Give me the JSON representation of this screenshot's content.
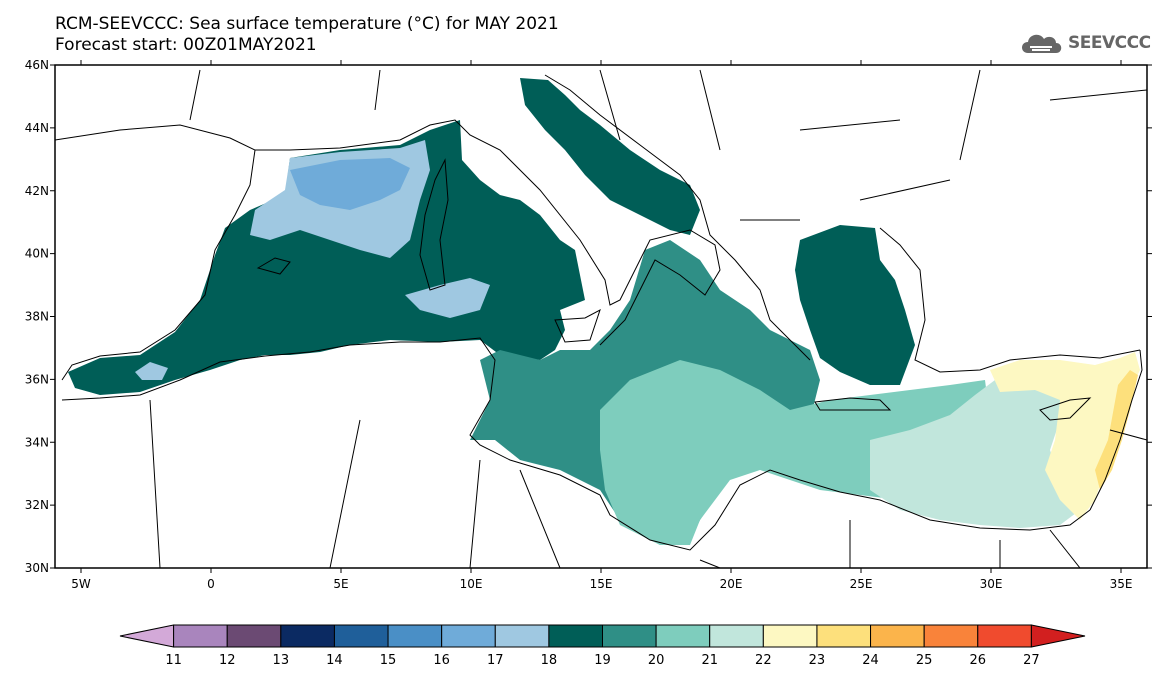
{
  "title": {
    "line1": "RCM-SEEVCCC: Sea surface temperature (°C) for MAY 2021",
    "line2": "Forecast start: 00Z01MAY2021"
  },
  "logo": {
    "text": "SEEVCCC",
    "icon": "cloud-icon"
  },
  "map": {
    "lat_range": [
      30,
      46
    ],
    "lon_range": [
      -6,
      36
    ],
    "lat_ticks": [
      {
        "value": 46,
        "label": "46N"
      },
      {
        "value": 44,
        "label": "44N"
      },
      {
        "value": 42,
        "label": "42N"
      },
      {
        "value": 40,
        "label": "40N"
      },
      {
        "value": 38,
        "label": "38N"
      },
      {
        "value": 36,
        "label": "36N"
      },
      {
        "value": 34,
        "label": "34N"
      },
      {
        "value": 32,
        "label": "32N"
      },
      {
        "value": 30,
        "label": "30N"
      }
    ],
    "lon_ticks": [
      {
        "value": -5,
        "label": "5W"
      },
      {
        "value": 0,
        "label": "0"
      },
      {
        "value": 5,
        "label": "5E"
      },
      {
        "value": 10,
        "label": "10E"
      },
      {
        "value": 15,
        "label": "15E"
      },
      {
        "value": 20,
        "label": "20E"
      },
      {
        "value": 25,
        "label": "25E"
      },
      {
        "value": 30,
        "label": "30E"
      },
      {
        "value": 35,
        "label": "35E"
      }
    ]
  },
  "colorbar": {
    "levels": [
      "11",
      "12",
      "13",
      "14",
      "15",
      "16",
      "17",
      "18",
      "19",
      "20",
      "21",
      "22",
      "23",
      "24",
      "25",
      "26",
      "27"
    ],
    "colors": [
      "#d3a9d8",
      "#a985bd",
      "#6b4a73",
      "#0b2a62",
      "#1f5f9a",
      "#4a8fc6",
      "#6fabd9",
      "#9fc8e1",
      "#005e57",
      "#2f8f86",
      "#7ecdbd",
      "#c1e6dc",
      "#fdf8c2",
      "#fde07c",
      "#fbb44b",
      "#f9833a",
      "#f04b2e",
      "#d21f1f"
    ]
  },
  "legend_colors": {
    "t17": "#6fabd9",
    "t18": "#9fc8e1",
    "t19": "#005e57",
    "t20": "#2f8f86",
    "t21": "#7ecdbd",
    "t22": "#c1e6dc",
    "t23": "#fdf8c2",
    "t24": "#fde07c"
  }
}
